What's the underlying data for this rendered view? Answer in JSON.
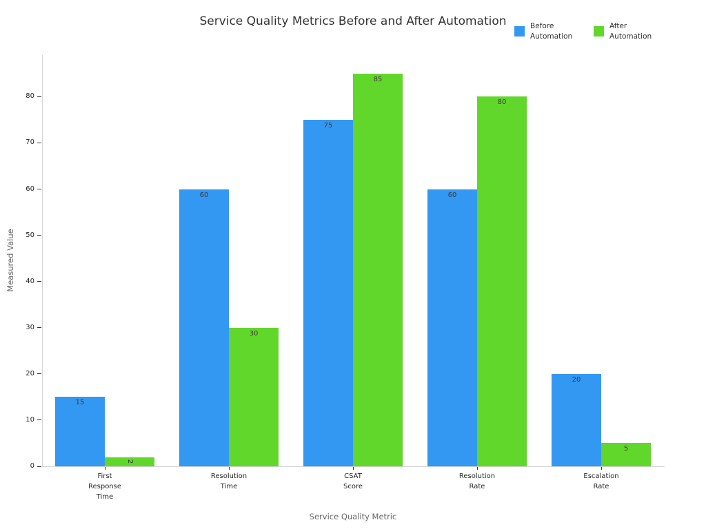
{
  "chart_data": {
    "type": "bar",
    "title": "Service Quality Metrics Before and After Automation",
    "xlabel": "Service Quality Metric",
    "ylabel": "Measured Value",
    "categories": [
      "First\nResponse\nTime",
      "Resolution\nTime",
      "CSAT\nScore",
      "Resolution\nRate",
      "Escalation\nRate"
    ],
    "series": [
      {
        "name": "Before Automation",
        "color": "#3398F2",
        "values": [
          15,
          60,
          75,
          60,
          20
        ]
      },
      {
        "name": "After Automation",
        "color": "#62D72B",
        "values": [
          2,
          30,
          85,
          80,
          5
        ]
      }
    ],
    "yticks": [
      0,
      10,
      20,
      30,
      40,
      50,
      60,
      70,
      80
    ],
    "ylim": [
      0,
      89
    ],
    "grid": false,
    "legend_position": "top-right",
    "bar_value_labels": true
  },
  "colors": {
    "before_bar": "#3398F2",
    "after_bar": "#62D72B",
    "title_text": "#333333",
    "tick_label": "#262626",
    "axis_title": "#666666",
    "spine": "#d4d4d4",
    "tick_mark": "#333333",
    "value_label": "#3a3a3a"
  }
}
